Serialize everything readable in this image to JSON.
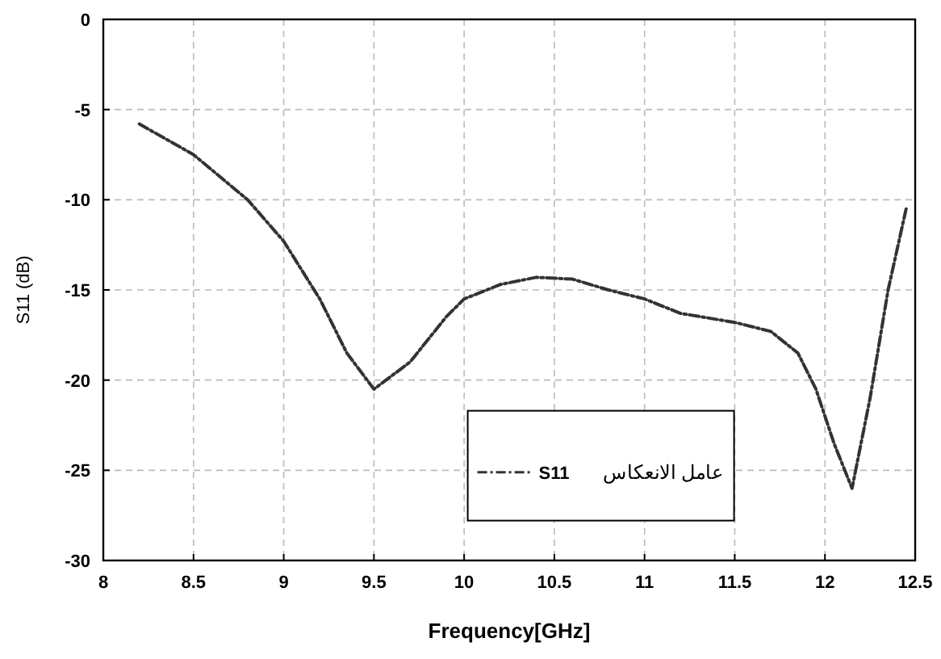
{
  "chart_data": {
    "type": "line",
    "xlabel": "Frequency[GHz]",
    "ylabel": "S11 (dB)",
    "legend_title": "عامل الانعكاس",
    "xlim": [
      8,
      12.5
    ],
    "xticks": [
      8,
      8.5,
      9,
      9.5,
      10,
      10.5,
      11,
      11.5,
      12,
      12.5
    ],
    "ylim": [
      -30,
      0
    ],
    "yticks": [
      -30,
      -25,
      -20,
      -15,
      -10,
      -5,
      0
    ],
    "grid": true,
    "legend": "bottom",
    "line_style": "dashed",
    "marker": "none",
    "series": [
      {
        "name": "S11",
        "color": "#333333",
        "x": [
          8.2,
          8.5,
          8.8,
          9.0,
          9.2,
          9.35,
          9.5,
          9.7,
          9.9,
          10.0,
          10.2,
          10.4,
          10.6,
          10.8,
          11.0,
          11.2,
          11.5,
          11.7,
          11.85,
          11.95,
          12.05,
          12.15,
          12.25,
          12.35,
          12.45
        ],
        "values": [
          -5.8,
          -7.5,
          -10,
          -12.3,
          -15.5,
          -18.5,
          -20.5,
          -19,
          -16.5,
          -15.5,
          -14.7,
          -14.3,
          -14.4,
          -15,
          -15.5,
          -16.3,
          -16.8,
          -17.3,
          -18.5,
          -20.5,
          -23.5,
          -26,
          -21,
          -15,
          -10.5
        ]
      }
    ]
  }
}
